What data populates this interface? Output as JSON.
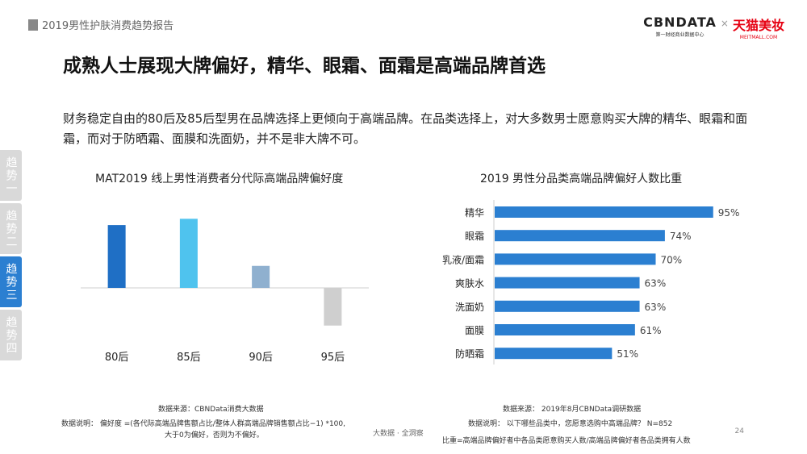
{
  "header": {
    "report_title": "2019男性护肤消费趋势报告",
    "brand_cbn": "CBNDATA",
    "brand_cbn_sub": "第一财经商业数据中心",
    "brand_x": "×",
    "brand_tmall": "天猫美妆",
    "brand_tmall_sub": "MEITMALL.COM"
  },
  "main_title": "成熟人士展现大牌偏好，精华、眼霜、面霜是高端品牌首选",
  "description": "财务稳定自由的80后及85后型男在品牌选择上更倾向于高端品牌。在品类选择上，对大多数男士愿意购买大牌的精华、眼霜和面霜，而对于防晒霜、面膜和洗面奶，并不是非大牌不可。",
  "side_tabs": [
    {
      "label": "趋势一",
      "active": false
    },
    {
      "label": "趋势二",
      "active": false
    },
    {
      "label": "趋势三",
      "active": true
    },
    {
      "label": "趋势四",
      "active": false
    }
  ],
  "chart_data": [
    {
      "type": "bar",
      "title": "MAT2019 线上男性消费者分代际高端品牌偏好度",
      "categories": [
        "80后",
        "85后",
        "90后",
        "95后"
      ],
      "values": [
        100,
        110,
        35,
        -60
      ],
      "colors": [
        "#1f6fc5",
        "#4fc3ee",
        "#8fb0cf",
        "#cfcfcf"
      ],
      "ylim": [
        -70,
        120
      ],
      "grid": false,
      "legend": "none"
    },
    {
      "type": "bar",
      "orientation": "horizontal",
      "title": "2019 男性分品类高端品牌偏好人数比重",
      "categories": [
        "精华",
        "眼霜",
        "乳液/面霜",
        "爽肤水",
        "洗面奶",
        "面膜",
        "防晒霜"
      ],
      "values": [
        95,
        74,
        70,
        63,
        63,
        61,
        51
      ],
      "value_labels": [
        "95%",
        "74%",
        "70%",
        "63%",
        "63%",
        "61%",
        "51%"
      ],
      "color": "#2b7fd1",
      "xlim": [
        0,
        100
      ],
      "grid": false,
      "legend": "none"
    }
  ],
  "footer": {
    "left_source": "数据来源：CBNData消费大数据",
    "left_note_1": "数据说明：  偏好度 =(各代际高端品牌售额占比/整体人群高端品牌销售额占比−1) *100,",
    "left_note_2": "大于0为偏好，否则为不偏好。",
    "mid_text": "大数据 · 全洞察",
    "right_source": "数据来源：  2019年8月CBNData调研数据",
    "right_note_1": "数据说明：  以下哪些品类中，您愿意选购中高端品牌？ N=852",
    "right_note_2": "比重=高端品牌偏好者中各品类愿意购买人数/高端品牌偏好者各品类拥有人数",
    "page_number": "24"
  }
}
